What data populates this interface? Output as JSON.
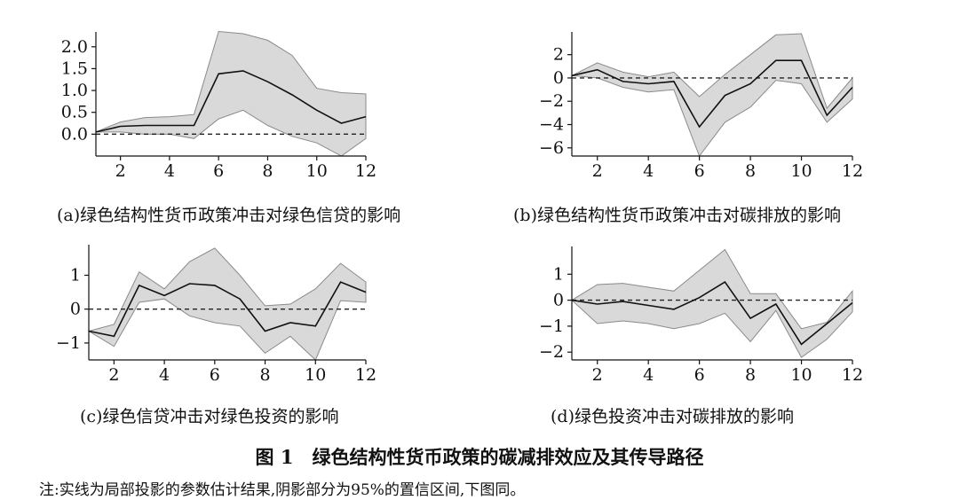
{
  "figure": {
    "title": "图 1　绿色结构性货币政策的碳减排效应及其传导路径",
    "note": "注:实线为局部投影的参数估计结果,阴影部分为95%的置信区间,下图同。"
  },
  "chart_data": [
    {
      "type": "area",
      "caption": "(a)绿色结构性货币政策冲击对绿色信贷的影响",
      "x": [
        1,
        2,
        3,
        4,
        5,
        6,
        7,
        8,
        9,
        10,
        11,
        12
      ],
      "series": [
        {
          "role": "estimate",
          "values": [
            0.05,
            0.18,
            0.2,
            0.2,
            0.2,
            1.38,
            1.45,
            1.2,
            0.9,
            0.55,
            0.25,
            0.4
          ]
        },
        {
          "role": "upper",
          "values": [
            0.05,
            0.28,
            0.38,
            0.4,
            0.45,
            2.35,
            2.3,
            2.15,
            1.8,
            1.05,
            0.95,
            0.92
          ]
        },
        {
          "role": "lower",
          "values": [
            0.05,
            0.05,
            0.0,
            0.0,
            -0.1,
            0.35,
            0.55,
            0.2,
            -0.05,
            -0.2,
            -0.5,
            -0.1
          ]
        }
      ],
      "xlim": [
        1,
        12
      ],
      "ylim": [
        -0.5,
        2.3
      ],
      "xticks": [
        2,
        4,
        6,
        8,
        10,
        12
      ],
      "yticks": [
        0.0,
        0.5,
        1.0,
        1.5,
        2.0
      ],
      "ytick_labels": [
        "0.0",
        "0.5",
        "1.0",
        "1.5",
        "2.0"
      ],
      "reference_line": 0
    },
    {
      "type": "area",
      "caption": "(b)绿色结构性货币政策冲击对碳排放的影响",
      "x": [
        1,
        2,
        3,
        4,
        5,
        6,
        7,
        8,
        9,
        10,
        11,
        12
      ],
      "series": [
        {
          "role": "estimate",
          "values": [
            0.2,
            0.7,
            -0.3,
            -0.5,
            -0.3,
            -4.2,
            -1.5,
            -0.5,
            1.5,
            1.5,
            -3.2,
            -0.8
          ]
        },
        {
          "role": "upper",
          "values": [
            0.2,
            1.3,
            0.5,
            0.1,
            0.5,
            -1.6,
            0.3,
            2.0,
            3.7,
            3.8,
            -2.6,
            0.0
          ]
        },
        {
          "role": "lower",
          "values": [
            0.2,
            0.0,
            -0.8,
            -1.2,
            -1.0,
            -6.7,
            -3.8,
            -2.5,
            -0.2,
            -0.5,
            -3.8,
            -1.8
          ]
        }
      ],
      "xlim": [
        1,
        12
      ],
      "ylim": [
        -6.7,
        3.8
      ],
      "xticks": [
        2,
        4,
        6,
        8,
        10,
        12
      ],
      "yticks": [
        -6,
        -4,
        -2,
        0,
        2
      ],
      "ytick_labels": [
        "−6",
        "−4",
        "−2",
        "0",
        "2"
      ],
      "reference_line": 0
    },
    {
      "type": "area",
      "caption": "(c)绿色信贷冲击对绿色投资的影响",
      "x": [
        1,
        2,
        3,
        4,
        5,
        6,
        7,
        8,
        9,
        10,
        11,
        12
      ],
      "series": [
        {
          "role": "estimate",
          "values": [
            -0.65,
            -0.8,
            0.7,
            0.4,
            0.75,
            0.7,
            0.3,
            -0.65,
            -0.4,
            -0.5,
            0.8,
            0.5
          ]
        },
        {
          "role": "upper",
          "values": [
            -0.65,
            -0.45,
            1.1,
            0.6,
            1.4,
            1.8,
            1.0,
            0.1,
            0.15,
            0.6,
            1.35,
            0.8
          ]
        },
        {
          "role": "lower",
          "values": [
            -0.65,
            -1.1,
            0.2,
            0.3,
            -0.2,
            -0.4,
            -0.5,
            -1.3,
            -0.8,
            -1.5,
            0.25,
            0.2
          ]
        }
      ],
      "xlim": [
        1,
        12
      ],
      "ylim": [
        -1.5,
        1.85
      ],
      "xticks": [
        2,
        4,
        6,
        8,
        10,
        12
      ],
      "yticks": [
        -1,
        0,
        1
      ],
      "ytick_labels": [
        "−1",
        "0",
        "1"
      ],
      "reference_line": 0
    },
    {
      "type": "area",
      "caption": "(d)绿色投资冲击对碳排放的影响",
      "x": [
        1,
        2,
        3,
        4,
        5,
        6,
        7,
        8,
        9,
        10,
        11,
        12
      ],
      "series": [
        {
          "role": "estimate",
          "values": [
            0.0,
            -0.15,
            -0.05,
            -0.2,
            -0.35,
            0.1,
            0.7,
            -0.7,
            -0.15,
            -1.7,
            -0.9,
            -0.1
          ]
        },
        {
          "role": "upper",
          "values": [
            0.0,
            0.6,
            0.65,
            0.5,
            0.35,
            1.15,
            1.95,
            0.25,
            0.25,
            -1.1,
            -0.85,
            0.35
          ]
        },
        {
          "role": "lower",
          "values": [
            0.0,
            -0.9,
            -0.8,
            -0.9,
            -1.1,
            -0.9,
            -0.5,
            -1.6,
            -0.4,
            -2.2,
            -1.5,
            -0.45
          ]
        }
      ],
      "xlim": [
        1,
        12
      ],
      "ylim": [
        -2.3,
        2.0
      ],
      "xticks": [
        2,
        4,
        6,
        8,
        10,
        12
      ],
      "yticks": [
        -2,
        -1,
        0,
        1
      ],
      "ytick_labels": [
        "−2",
        "−1",
        "0",
        "1"
      ],
      "reference_line": 0
    }
  ]
}
